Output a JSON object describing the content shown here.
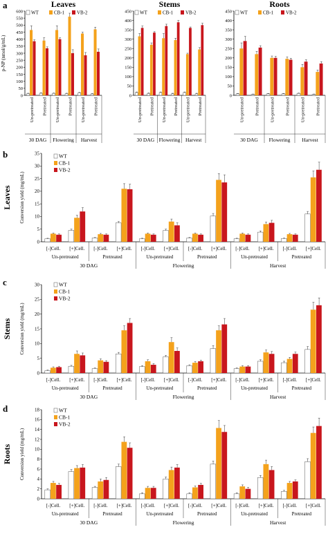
{
  "colors": {
    "WT": "#ffffff",
    "CB-1": "#f4a21c",
    "VB-2": "#c8161d",
    "axis": "#000000"
  },
  "legend": [
    "WT",
    "CB-1",
    "VB-2"
  ],
  "chart_data": [
    {
      "panel_label": "a",
      "title": "Leaves",
      "type": "bar",
      "ylabel": "p-NP (nmol/g/mL)",
      "ylim": [
        0,
        600
      ],
      "yticks": [
        0,
        50,
        100,
        150,
        200,
        250,
        300,
        350,
        400,
        450,
        500,
        550,
        600
      ],
      "categories": [
        "Un-pretreated",
        "Pretreated",
        "Un-pretreated",
        "Pretreated",
        "Un-pretreated",
        "Pretreated"
      ],
      "groups": [
        {
          "label": "30 DAG",
          "span": 2
        },
        {
          "label": "Flowering",
          "span": 2
        },
        {
          "label": "Harvest",
          "span": 2
        }
      ],
      "series": [
        {
          "name": "WT",
          "values": [
            12,
            15,
            14,
            12,
            18,
            10
          ],
          "errors": [
            3,
            3,
            3,
            3,
            3,
            3
          ]
        },
        {
          "name": "CB-1",
          "values": [
            465,
            390,
            465,
            560,
            440,
            470
          ],
          "errors": [
            30,
            20,
            30,
            25,
            10,
            15
          ]
        },
        {
          "name": "VB-2",
          "values": [
            385,
            335,
            400,
            300,
            285,
            310
          ],
          "errors": [
            10,
            10,
            10,
            25,
            20,
            20
          ]
        }
      ]
    },
    {
      "panel_label": "",
      "title": "Stems",
      "type": "bar",
      "ylabel": "",
      "ylim": [
        0,
        450
      ],
      "yticks": [
        0,
        50,
        100,
        150,
        200,
        250,
        300,
        350,
        400,
        450
      ],
      "categories": [
        "Un-pretreated",
        "Pretreated",
        "Un-pretreated",
        "Pretreated",
        "Un-pretreated",
        "Pretreated"
      ],
      "groups": [
        {
          "label": "30 DAG",
          "span": 2
        },
        {
          "label": "Flowering",
          "span": 2
        },
        {
          "label": "Harvest",
          "span": 2
        }
      ],
      "series": [
        {
          "name": "WT",
          "values": [
            15,
            10,
            15,
            8,
            15,
            8
          ],
          "errors": [
            3,
            3,
            3,
            3,
            3,
            3
          ]
        },
        {
          "name": "CB-1",
          "values": [
            315,
            270,
            305,
            295,
            220,
            245
          ],
          "errors": [
            15,
            10,
            25,
            10,
            5,
            10
          ]
        },
        {
          "name": "VB-2",
          "values": [
            360,
            335,
            370,
            390,
            360,
            375
          ],
          "errors": [
            10,
            5,
            10,
            10,
            5,
            10
          ]
        }
      ]
    },
    {
      "panel_label": "",
      "title": "Roots",
      "type": "bar",
      "ylabel": "",
      "ylim": [
        0,
        450
      ],
      "yticks": [
        0,
        50,
        100,
        150,
        200,
        250,
        300,
        350,
        400,
        450
      ],
      "categories": [
        "Un-pretreated",
        "Pretreated",
        "Un-pretreated",
        "Pretreated",
        "Un-pretreated",
        "Pretreated"
      ],
      "groups": [
        {
          "label": "30 DAG",
          "span": 2
        },
        {
          "label": "Flowering",
          "span": 2
        },
        {
          "label": "Harvest",
          "span": 2
        }
      ],
      "series": [
        {
          "name": "WT",
          "values": [
            8,
            5,
            8,
            8,
            10,
            5
          ],
          "errors": [
            2,
            2,
            2,
            2,
            2,
            2
          ]
        },
        {
          "name": "CB-1",
          "values": [
            250,
            220,
            200,
            195,
            150,
            125
          ],
          "errors": [
            30,
            15,
            10,
            10,
            15,
            10
          ]
        },
        {
          "name": "VB-2",
          "values": [
            290,
            255,
            200,
            190,
            180,
            170
          ],
          "errors": [
            25,
            10,
            8,
            8,
            10,
            10
          ]
        }
      ]
    },
    {
      "panel_label": "b",
      "title": "Leaves",
      "type": "bar",
      "ylabel": "Conversion yield (mg/mL)",
      "ylim": [
        0,
        35
      ],
      "yticks": [
        0,
        5,
        10,
        15,
        20,
        25,
        30,
        35
      ],
      "categories": [
        "[-]Cell.",
        "[+]Cell.",
        "[-]Cell.",
        "[+]Cell.",
        "[-]Cell.",
        "[+]Cell.",
        "[-]Cell.",
        "[+]Cell.",
        "[-]Cell.",
        "[+]Cell.",
        "[-]Cell.",
        "[+]Cell."
      ],
      "sublabels": [
        {
          "label": "Un-pretreated",
          "span": 2
        },
        {
          "label": "Pretreated",
          "span": 2
        },
        {
          "label": "Un-pretreated",
          "span": 2
        },
        {
          "label": "Pretreated",
          "span": 2
        },
        {
          "label": "Un-pretreated",
          "span": 2
        },
        {
          "label": "Pretreated",
          "span": 2
        }
      ],
      "groups": [
        {
          "label": "30 DAG",
          "span": 4
        },
        {
          "label": "Flowering",
          "span": 4
        },
        {
          "label": "Harvest",
          "span": 4
        }
      ],
      "series": [
        {
          "name": "WT",
          "values": [
            1.2,
            4.5,
            1.5,
            7.5,
            1.2,
            4.5,
            1.5,
            10.2,
            1.2,
            3.8,
            1.3,
            11
          ],
          "errors": [
            0.2,
            0.5,
            0.2,
            0.5,
            0.2,
            0.5,
            0.2,
            1,
            0.2,
            0.5,
            0.2,
            1
          ]
        },
        {
          "name": "CB-1",
          "values": [
            3.2,
            9.5,
            3.0,
            21.0,
            3.2,
            8.0,
            3.2,
            24.5,
            3.2,
            7.0,
            3.0,
            25.5
          ],
          "errors": [
            0.3,
            1,
            0.3,
            2,
            0.3,
            1,
            0.3,
            2.5,
            0.3,
            0.8,
            0.3,
            2.5
          ]
        },
        {
          "name": "VB-2",
          "values": [
            2.8,
            12.0,
            2.8,
            20.8,
            2.8,
            6.5,
            2.8,
            23.5,
            2.8,
            7.5,
            2.8,
            28.5
          ],
          "errors": [
            0.3,
            1.5,
            0.3,
            2,
            0.3,
            1,
            0.3,
            3,
            0.3,
            1,
            0.3,
            3
          ]
        }
      ]
    },
    {
      "panel_label": "c",
      "title": "Stems",
      "type": "bar",
      "ylabel": "Conversion yield (mg/mL)",
      "ylim": [
        0,
        30
      ],
      "yticks": [
        0,
        5,
        10,
        15,
        20,
        25,
        30
      ],
      "categories": [
        "[-]Cell.",
        "[+]Cell.",
        "[-]Cell.",
        "[+]Cell.",
        "[-]Cell.",
        "[+]Cell.",
        "[-]Cell.",
        "[+]Cell.",
        "[-]Cell.",
        "[+]Cell.",
        "[-]Cell.",
        "[+]Cell."
      ],
      "sublabels": [
        {
          "label": "Un-pretreated",
          "span": 2
        },
        {
          "label": "Pretreated",
          "span": 2
        },
        {
          "label": "Un-pretreated",
          "span": 2
        },
        {
          "label": "Pretreated",
          "span": 2
        },
        {
          "label": "Un-pretreated",
          "span": 2
        },
        {
          "label": "Pretreated",
          "span": 2
        }
      ],
      "groups": [
        {
          "label": "30 DAG",
          "span": 4
        },
        {
          "label": "Flowering",
          "span": 4
        },
        {
          "label": "Harvest",
          "span": 4
        }
      ],
      "series": [
        {
          "name": "WT",
          "values": [
            0.8,
            2.3,
            1.5,
            6.5,
            2.2,
            5.5,
            2.5,
            8.3,
            1.5,
            4.0,
            3.5,
            8.0
          ],
          "errors": [
            0.2,
            0.3,
            0.2,
            0.5,
            0.3,
            0.5,
            0.3,
            1,
            0.2,
            0.5,
            0.5,
            1
          ]
        },
        {
          "name": "CB-1",
          "values": [
            1.8,
            6.5,
            4.3,
            14.5,
            4.0,
            10.5,
            3.5,
            14.5,
            2.2,
            7.0,
            4.8,
            21.5
          ],
          "errors": [
            0.3,
            1,
            0.5,
            1.5,
            0.5,
            1.5,
            0.4,
            1.5,
            0.3,
            0.8,
            0.5,
            2.5
          ]
        },
        {
          "name": "VB-2",
          "values": [
            2.0,
            6.0,
            3.8,
            17.0,
            2.8,
            7.5,
            4.0,
            16.5,
            2.2,
            6.5,
            6.5,
            23.0
          ],
          "errors": [
            0.3,
            0.8,
            0.4,
            1.5,
            0.4,
            1,
            0.4,
            2,
            0.3,
            0.8,
            0.6,
            2.5
          ]
        }
      ]
    },
    {
      "panel_label": "d",
      "title": "Roots",
      "type": "bar",
      "ylabel": "Conversion yield (mg/mL)",
      "ylim": [
        0,
        18
      ],
      "yticks": [
        0,
        2,
        4,
        6,
        8,
        10,
        12,
        14,
        16,
        18
      ],
      "categories": [
        "[-]Cell.",
        "[+]Cell.",
        "[-]Cell.",
        "[+]Cell.",
        "[-]Cell.",
        "[+]Cell.",
        "[-]Cell.",
        "[+]Cell.",
        "[-]Cell.",
        "[+]Cell.",
        "[-]Cell.",
        "[+]Cell."
      ],
      "sublabels": [
        {
          "label": "Un-pretreated",
          "span": 2
        },
        {
          "label": "Pretreated",
          "span": 2
        },
        {
          "label": "Un-pretreated",
          "span": 2
        },
        {
          "label": "Pretreated",
          "span": 2
        },
        {
          "label": "Un-pretreated",
          "span": 2
        },
        {
          "label": "Pretreated",
          "span": 2
        }
      ],
      "groups": [
        {
          "label": "30 DAG",
          "span": 4
        },
        {
          "label": "Flowering",
          "span": 4
        },
        {
          "label": "Harvest",
          "span": 4
        }
      ],
      "series": [
        {
          "name": "WT",
          "values": [
            1.8,
            5.5,
            2.3,
            6.5,
            1.0,
            4.0,
            1.0,
            7.0,
            1.0,
            4.3,
            1.5,
            7.5
          ],
          "errors": [
            0.2,
            0.4,
            0.2,
            0.5,
            0.2,
            0.4,
            0.2,
            0.6,
            0.2,
            0.4,
            0.2,
            0.6
          ]
        },
        {
          "name": "CB-1",
          "values": [
            3.2,
            6.2,
            3.5,
            11.5,
            2.2,
            5.8,
            2.3,
            14.3,
            2.5,
            7.0,
            3.2,
            13.3
          ],
          "errors": [
            0.3,
            0.5,
            0.5,
            1,
            0.3,
            0.6,
            0.3,
            1.5,
            0.3,
            0.8,
            0.3,
            1.2
          ]
        },
        {
          "name": "VB-2",
          "values": [
            2.8,
            6.3,
            3.8,
            10.3,
            2.2,
            6.3,
            2.8,
            13.5,
            2.0,
            5.8,
            3.5,
            14.7
          ],
          "errors": [
            0.3,
            0.6,
            0.5,
            1,
            0.3,
            0.6,
            0.3,
            1.3,
            0.3,
            0.7,
            0.3,
            1.6
          ]
        }
      ]
    }
  ]
}
